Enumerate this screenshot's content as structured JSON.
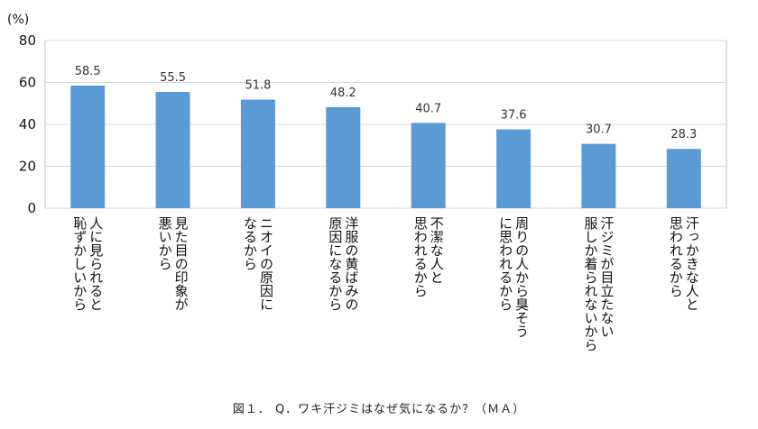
{
  "chart_data": {
    "type": "bar",
    "title": "",
    "xlabel": "",
    "ylabel": "",
    "unit_label": "(%)",
    "ylim": [
      0,
      80
    ],
    "yticks": [
      0,
      20,
      40,
      60,
      80
    ],
    "grid": true,
    "legend": "none",
    "bar_color": "#5b9bd5",
    "grid_color": "#d9d9d9",
    "categories": [
      "人に見られると恥ずかしいから",
      "見た目の印象が悪いから",
      "ニオイの原因になるから",
      "洋服の黄ばみの原因になるから",
      "不潔な人と思われるから",
      "周りの人から臭そうに思われるから",
      "汗ジミが目立たない服しか着られないから",
      "汗っかきな人と思われるから"
    ],
    "category_lines": [
      [
        "人に見られると",
        "恥ずかしいから"
      ],
      [
        "見た目の印象が",
        "悪いから"
      ],
      [
        "ニオイの原因に",
        "なるから"
      ],
      [
        "洋服の黄ばみの",
        "原因になるから"
      ],
      [
        "不潔な人と",
        "思われるから"
      ],
      [
        "周りの人から臭そう",
        "に思われるから"
      ],
      [
        "汗ジミが目立たない",
        "服しか着られないから"
      ],
      [
        "汗っかきな人と",
        "思われるから"
      ]
    ],
    "values": [
      58.5,
      55.5,
      51.8,
      48.2,
      40.7,
      37.6,
      30.7,
      28.3
    ],
    "value_labels": [
      "58.5",
      "55.5",
      "51.8",
      "48.2",
      "40.7",
      "37.6",
      "30.7",
      "28.3"
    ]
  },
  "caption": "図１． Q．ワキ汗ジミはなぜ気になるか？（ＭＡ）"
}
